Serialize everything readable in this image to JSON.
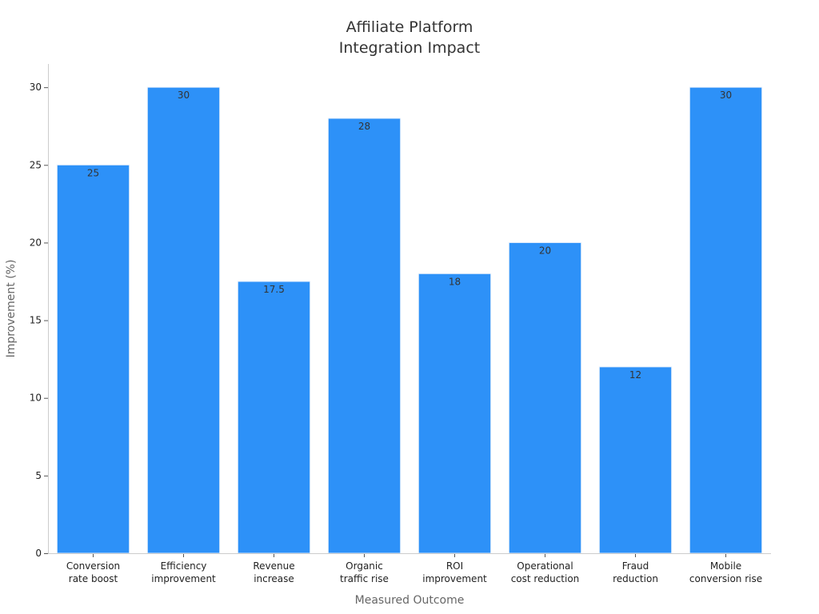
{
  "chart_data": {
    "type": "bar",
    "title_lines": [
      "Affiliate Platform",
      "Integration Impact"
    ],
    "xlabel": "Measured Outcome",
    "ylabel": "Improvement (%)",
    "ylim": [
      0,
      31.5
    ],
    "yticks": [
      0,
      5,
      10,
      15,
      20,
      25,
      30
    ],
    "categories": [
      [
        "Conversion",
        "rate boost"
      ],
      [
        "Efficiency",
        "improvement"
      ],
      [
        "Revenue",
        "increase"
      ],
      [
        "Organic",
        "traffic rise"
      ],
      [
        "ROI",
        "improvement"
      ],
      [
        "Operational",
        "cost reduction"
      ],
      [
        "Fraud",
        "reduction"
      ],
      [
        "Mobile",
        "conversion rise"
      ]
    ],
    "values": [
      25,
      30,
      17.5,
      28,
      18,
      20,
      12,
      30
    ],
    "value_labels": [
      "25",
      "30",
      "17.5",
      "28",
      "18",
      "20",
      "12",
      "30"
    ],
    "bar_color": "#2d91f8",
    "bar_edge_color": "#e8f1fc",
    "axis_color": "#cccccc",
    "grid": false,
    "legend": "none"
  }
}
